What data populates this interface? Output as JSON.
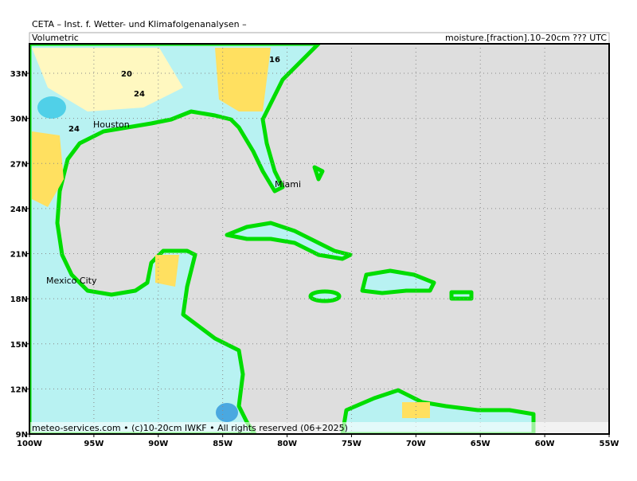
{
  "header": {
    "title": "CETA – Inst. f. Wetter- und Klimafolgenanalysen –",
    "left_label": "Volumetric",
    "right_label": "moisture.[fraction].10–20cm ??? UTC"
  },
  "footer": "meteo-services.com • (c)10-20cm IWKF • All rights reserved (06+2025)",
  "map": {
    "lat_ticks": [
      {
        "value": 33,
        "label": "33N"
      },
      {
        "value": 30,
        "label": "30N"
      },
      {
        "value": 27,
        "label": "27N"
      },
      {
        "value": 24,
        "label": "24N"
      },
      {
        "value": 21,
        "label": "21N"
      },
      {
        "value": 18,
        "label": "18N"
      },
      {
        "value": 15,
        "label": "15N"
      },
      {
        "value": 12,
        "label": "12N"
      },
      {
        "value": 9,
        "label": "9N"
      }
    ],
    "lon_ticks": [
      {
        "value": -100,
        "label": "100W"
      },
      {
        "value": -95,
        "label": "95W"
      },
      {
        "value": -90,
        "label": "90W"
      },
      {
        "value": -85,
        "label": "85W"
      },
      {
        "value": -80,
        "label": "80W"
      },
      {
        "value": -75,
        "label": "75W"
      },
      {
        "value": -70,
        "label": "70W"
      },
      {
        "value": -65,
        "label": "65W"
      },
      {
        "value": -60,
        "label": "60W"
      },
      {
        "value": -55,
        "label": "55W"
      }
    ],
    "cities": [
      "Houston",
      "Miami",
      "Mexico City"
    ],
    "contour_labels": [
      "20",
      "24",
      "24",
      "16"
    ]
  }
}
